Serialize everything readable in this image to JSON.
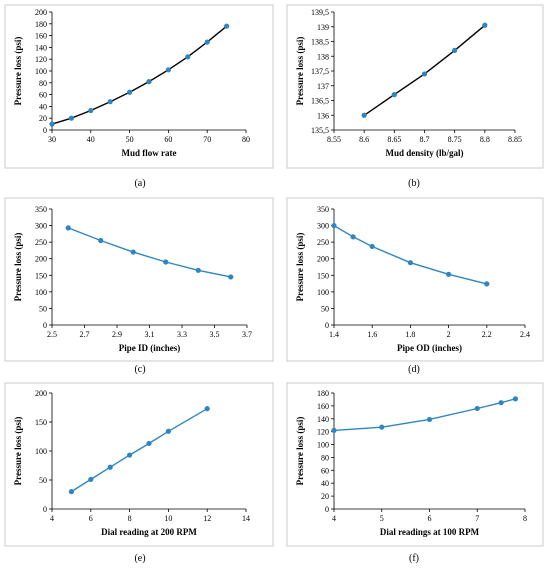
{
  "figure": {
    "series_color": "#2E86C1",
    "fit_color": "#000000",
    "panel_border": "#BFBFBF"
  },
  "chart_data": [
    {
      "id": "a",
      "caption": "(a)",
      "type": "scatter",
      "xlabel": "Mud flow rate",
      "ylabel": "Pressure loss (psi)",
      "xlim": [
        30,
        80
      ],
      "ylim": [
        0,
        200
      ],
      "xticks": [
        30,
        40,
        50,
        60,
        70,
        80
      ],
      "xtick_labels": [
        "30",
        "40",
        "50",
        "60",
        "70",
        "80"
      ],
      "yticks": [
        0,
        20,
        40,
        60,
        80,
        100,
        120,
        140,
        160,
        180,
        200
      ],
      "ytick_labels": [
        "0",
        "20",
        "40",
        "60",
        "80",
        "100",
        "120",
        "140",
        "160",
        "180",
        "200"
      ],
      "points": {
        "x": [
          30,
          35,
          40,
          45,
          50,
          55,
          60,
          65,
          70,
          75
        ],
        "y": [
          10,
          20,
          33,
          48,
          64,
          82,
          102,
          124,
          149,
          176
        ]
      },
      "line": "black_fit",
      "grid": false,
      "legend": "none"
    },
    {
      "id": "b",
      "caption": "(b)",
      "type": "scatter",
      "xlabel": "Mud density (lb/gal)",
      "ylabel": "Pressure loss (psi)",
      "xlim": [
        8.55,
        8.85
      ],
      "ylim": [
        135.5,
        139.5
      ],
      "xticks": [
        8.55,
        8.6,
        8.65,
        8.7,
        8.75,
        8.8,
        8.85
      ],
      "xtick_labels": [
        "8.55",
        "8.6",
        "8.65",
        "8.7",
        "8.75",
        "8.8",
        "8.85"
      ],
      "yticks": [
        135.5,
        136,
        136.5,
        137,
        137.5,
        138,
        138.5,
        139,
        139.5
      ],
      "ytick_labels": [
        "135,5",
        "136",
        "136,5",
        "137",
        "137,5",
        "138",
        "138,5",
        "139",
        "139,5"
      ],
      "points": {
        "x": [
          8.6,
          8.65,
          8.7,
          8.75,
          8.8
        ],
        "y": [
          136.0,
          136.7,
          137.4,
          138.2,
          139.05
        ]
      },
      "line": "black_fit",
      "grid": false,
      "legend": "none"
    },
    {
      "id": "c",
      "caption": "(c)",
      "type": "line",
      "xlabel": "Pipe ID (inches)",
      "ylabel": "Pressure loss (psi)",
      "xlim": [
        2.5,
        3.7
      ],
      "ylim": [
        0,
        350
      ],
      "xticks": [
        2.5,
        2.7,
        2.9,
        3.1,
        3.3,
        3.5,
        3.7
      ],
      "xtick_labels": [
        "2.5",
        "2.7",
        "2.9",
        "3.1",
        "3.3",
        "3.5",
        "3.7"
      ],
      "yticks": [
        0,
        50,
        100,
        150,
        200,
        250,
        300,
        350
      ],
      "ytick_labels": [
        "0",
        "50",
        "100",
        "150",
        "200",
        "250",
        "300",
        "350"
      ],
      "points": {
        "x": [
          2.6,
          2.8,
          3.0,
          3.2,
          3.4,
          3.6
        ],
        "y": [
          293,
          255,
          220,
          190,
          165,
          145
        ]
      },
      "line": "series",
      "grid": false,
      "legend": "none"
    },
    {
      "id": "d",
      "caption": "(d)",
      "type": "line",
      "xlabel": "Pipe OD (inches)",
      "ylabel": "Pressure loss (psi)",
      "xlim": [
        1.4,
        2.4
      ],
      "ylim": [
        0,
        350
      ],
      "xticks": [
        1.4,
        1.6,
        1.8,
        2,
        2.2,
        2.4
      ],
      "xtick_labels": [
        "1.4",
        "1.6",
        "1.8",
        "2",
        "2.2",
        "2.4"
      ],
      "yticks": [
        0,
        50,
        100,
        150,
        200,
        250,
        300,
        350
      ],
      "ytick_labels": [
        "0",
        "50",
        "100",
        "150",
        "200",
        "250",
        "300",
        "350"
      ],
      "points": {
        "x": [
          1.4,
          1.5,
          1.6,
          1.8,
          2.0,
          2.2
        ],
        "y": [
          300,
          266,
          237,
          188,
          153,
          124
        ]
      },
      "line": "series",
      "grid": false,
      "legend": "none"
    },
    {
      "id": "e",
      "caption": "(e)",
      "type": "line",
      "xlabel": "Dial reading at 200 RPM",
      "ylabel": "Pressure loss (psi)",
      "xlim": [
        4,
        14
      ],
      "ylim": [
        0,
        200
      ],
      "xticks": [
        4,
        6,
        8,
        10,
        12,
        14
      ],
      "xtick_labels": [
        "4",
        "6",
        "8",
        "10",
        "12",
        "14"
      ],
      "yticks": [
        0,
        50,
        100,
        150,
        200
      ],
      "ytick_labels": [
        "0",
        "50",
        "100",
        "150",
        "200"
      ],
      "points": {
        "x": [
          5,
          6,
          7,
          8,
          9,
          10,
          12
        ],
        "y": [
          30,
          51,
          72,
          93,
          113,
          134,
          173
        ]
      },
      "line": "series",
      "grid": false,
      "legend": "none"
    },
    {
      "id": "f",
      "caption": "(f)",
      "type": "line",
      "xlabel": "Dial readings at 100 RPM",
      "ylabel": "Pressure loss (psi)",
      "xlim": [
        4,
        8
      ],
      "ylim": [
        0,
        180
      ],
      "xticks": [
        4,
        5,
        6,
        7,
        8
      ],
      "xtick_labels": [
        "4",
        "5",
        "6",
        "7",
        "8"
      ],
      "yticks": [
        0,
        20,
        40,
        60,
        80,
        100,
        120,
        140,
        160,
        180
      ],
      "ytick_labels": [
        "0",
        "20",
        "40",
        "60",
        "80",
        "100",
        "120",
        "140",
        "160",
        "180"
      ],
      "points": {
        "x": [
          4,
          5,
          6,
          7,
          7.5,
          7.8
        ],
        "y": [
          122,
          127,
          139,
          156,
          165,
          171
        ]
      },
      "line": "series",
      "grid": false,
      "legend": "none"
    }
  ]
}
